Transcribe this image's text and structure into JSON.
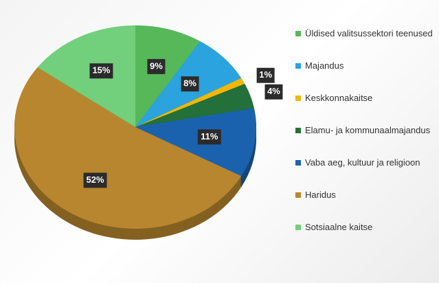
{
  "chart_data": {
    "type": "pie",
    "categories": [
      "Üldised valitsussektori teenused",
      "Majandus",
      "Keskkonnakaitse",
      "Elamu- ja kommunaalmajandus",
      "Vaba aeg, kultuur ja religioon",
      "Haridus",
      "Sotsiaalne kaitse"
    ],
    "values": [
      9,
      8,
      1,
      4,
      11,
      52,
      15
    ],
    "value_labels": [
      "9%",
      "8%",
      "1%",
      "4%",
      "11%",
      "52%",
      "15%"
    ],
    "colors": [
      "#57b85a",
      "#2ba3de",
      "#f2b705",
      "#23703a",
      "#1b62ae",
      "#b8862e",
      "#72cf7c"
    ],
    "legend": "right"
  }
}
